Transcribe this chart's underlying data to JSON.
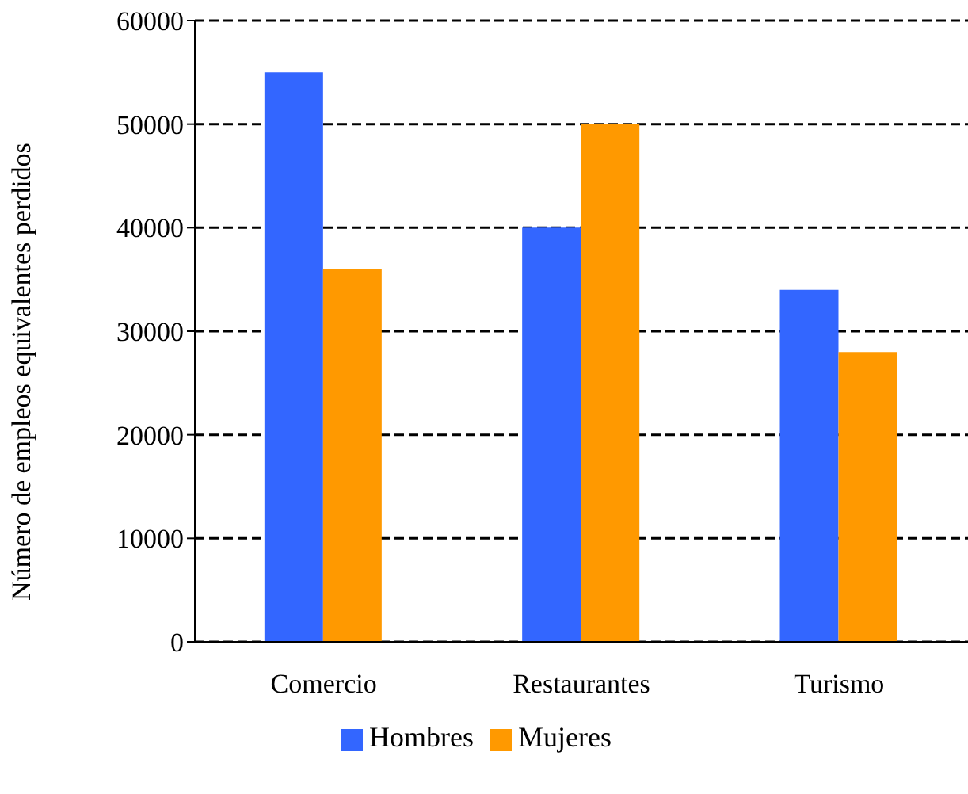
{
  "chart_data": {
    "type": "bar",
    "ylabel": "Número de empleos equivalentes perdidos",
    "categories": [
      "Comercio",
      "Restaurantes",
      "Turismo"
    ],
    "series": [
      {
        "name": "Hombres",
        "color": "#3366ff",
        "values": [
          55000,
          40000,
          34000
        ]
      },
      {
        "name": "Mujeres",
        "color": "#ff9900",
        "values": [
          36000,
          50000,
          28000
        ]
      }
    ],
    "ylim": [
      0,
      60000
    ],
    "yticks": [
      0,
      10000,
      20000,
      30000,
      40000,
      50000,
      60000
    ],
    "grid": "y",
    "legend": "bottom"
  }
}
